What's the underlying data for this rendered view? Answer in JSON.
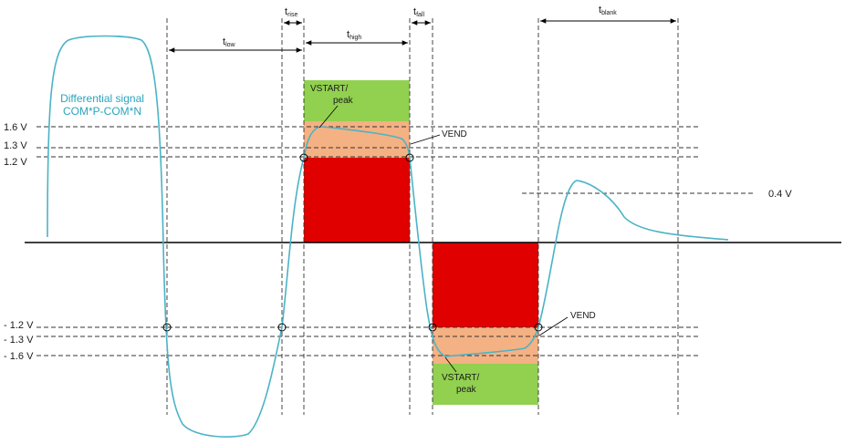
{
  "colors": {
    "signal": "#4bb3c6",
    "signal_label": "#2aa5bd",
    "green": "#92d050",
    "orange": "#f4b183",
    "red": "#e00000",
    "axis": "#000000",
    "dash": "#333333"
  },
  "signal_label": {
    "line1": "Differential signal",
    "line2": "COM*P-COM*N"
  },
  "voltage_labels": {
    "p16": "1.6 V",
    "p13": "1.3 V",
    "p12": "1.2 V",
    "m12": "- 1.2 V",
    "m13": "- 1.3 V",
    "m16": "- 1.6 V",
    "p04": "0.4 V"
  },
  "timing": {
    "t_low": {
      "main": "t",
      "sub": "low"
    },
    "t_rise": {
      "main": "t",
      "sub": "rise"
    },
    "t_high": {
      "main": "t",
      "sub": "high"
    },
    "t_fall": {
      "main": "t",
      "sub": "fall"
    },
    "t_blank": {
      "main": "t",
      "sub": "blank"
    }
  },
  "annotations": {
    "vstart_top_1": "VSTART/",
    "vstart_top_2": "peak",
    "vend_top": "VEND",
    "vstart_bot_1": "VSTART/",
    "vstart_bot_2": "peak",
    "vend_bot": "VEND"
  }
}
